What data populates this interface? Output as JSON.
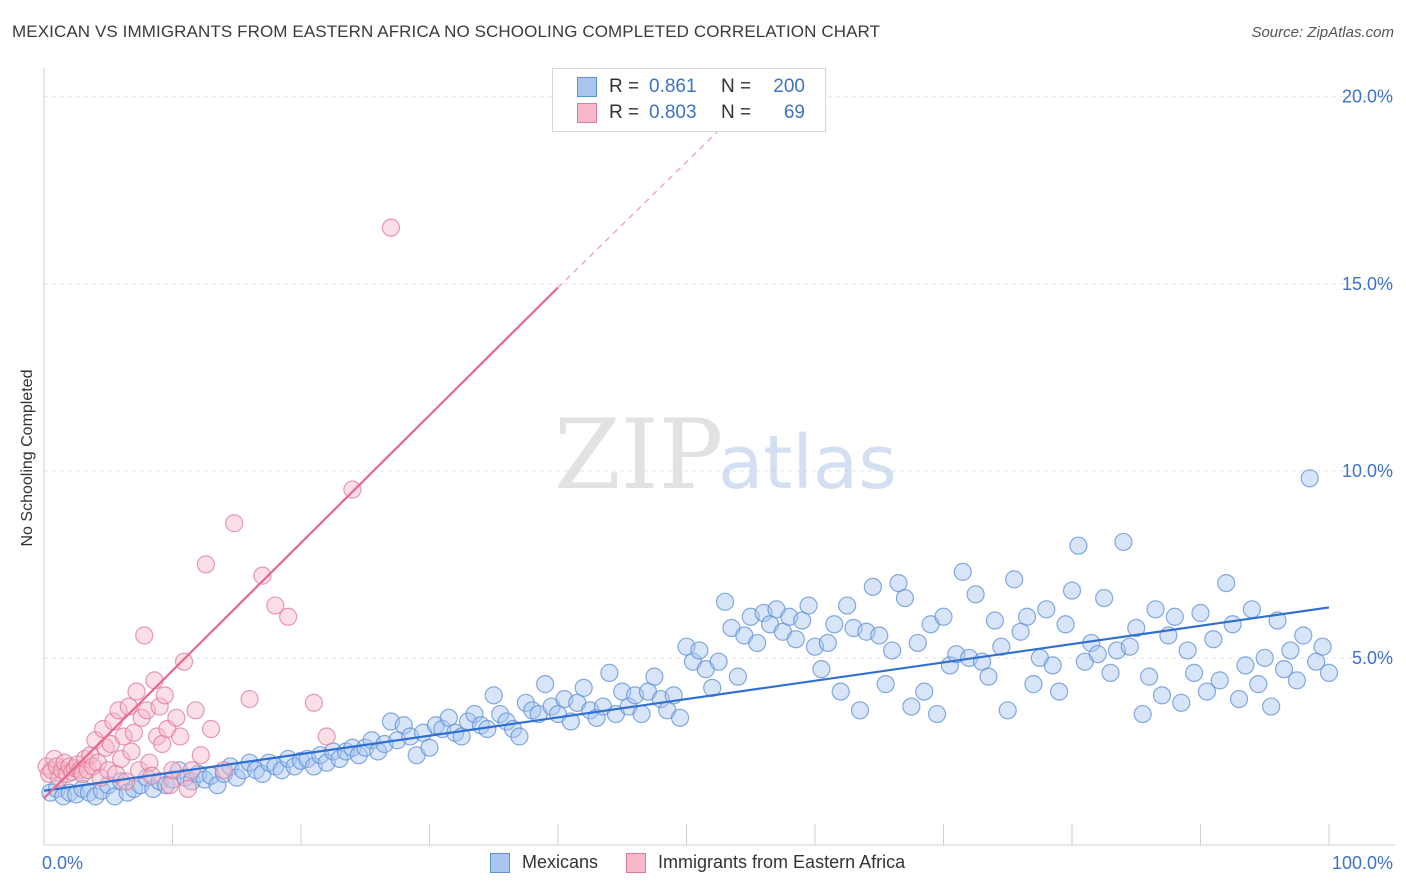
{
  "header": {
    "title": "MEXICAN VS IMMIGRANTS FROM EASTERN AFRICA NO SCHOOLING COMPLETED CORRELATION CHART",
    "source": "Source: ZipAtlas.com"
  },
  "watermark": {
    "zip": "ZIP",
    "atlas": "atlas"
  },
  "legend": {
    "rows": [
      {
        "r_label": "R =",
        "r_value": "0.861",
        "n_label": "N =",
        "n_value": "200",
        "color": "#a9c6f0",
        "border": "#5e8fd6"
      },
      {
        "r_label": "R =",
        "r_value": "0.803",
        "n_label": "N =",
        "n_value": "69",
        "color": "#f7b8ca",
        "border": "#e07a9a"
      }
    ]
  },
  "bottom_legend": {
    "items": [
      {
        "label": "Mexicans",
        "color": "#a9c6f0",
        "border": "#5e8fd6"
      },
      {
        "label": "Immigrants from Eastern Africa",
        "color": "#f7b8ca",
        "border": "#e07a9a"
      }
    ]
  },
  "chart_data": {
    "type": "scatter",
    "title": "MEXICAN VS IMMIGRANTS FROM EASTERN AFRICA NO SCHOOLING COMPLETED CORRELATION CHART",
    "xlabel": "",
    "ylabel": "No Schooling Completed",
    "xlim": [
      0,
      100
    ],
    "ylim": [
      0,
      20.5
    ],
    "x_tick_labels": [
      {
        "value": 0,
        "label": "0.0%"
      },
      {
        "value": 100,
        "label": "100.0%"
      }
    ],
    "y_ticks": [
      {
        "value": 5,
        "label": "5.0%"
      },
      {
        "value": 10,
        "label": "10.0%"
      },
      {
        "value": 15,
        "label": "15.0%"
      },
      {
        "value": 20,
        "label": "20.0%"
      }
    ],
    "x_minor_ticks": [
      0,
      10,
      20,
      30,
      40,
      50,
      60,
      70,
      80,
      90,
      100
    ],
    "series": [
      {
        "name": "Mexicans",
        "color": "#a9c6f0",
        "stroke": "#5e8fd6",
        "trend": {
          "x0": 0,
          "y0": 1.45,
          "x1": 100,
          "y1": 6.35,
          "color": "#2f6fd1"
        },
        "points": [
          [
            0.5,
            1.4
          ],
          [
            1.0,
            1.5
          ],
          [
            1.5,
            1.3
          ],
          [
            2.0,
            1.4
          ],
          [
            2.5,
            1.35
          ],
          [
            3.0,
            1.5
          ],
          [
            3.5,
            1.4
          ],
          [
            4.0,
            1.3
          ],
          [
            4.5,
            1.45
          ],
          [
            5.0,
            1.6
          ],
          [
            5.5,
            1.3
          ],
          [
            6.0,
            1.7
          ],
          [
            6.5,
            1.4
          ],
          [
            7.0,
            1.5
          ],
          [
            7.5,
            1.6
          ],
          [
            8.0,
            1.8
          ],
          [
            8.5,
            1.5
          ],
          [
            9.0,
            1.7
          ],
          [
            9.5,
            1.6
          ],
          [
            10.0,
            1.75
          ],
          [
            10.5,
            2.0
          ],
          [
            11.0,
            1.8
          ],
          [
            11.5,
            1.7
          ],
          [
            12.0,
            1.9
          ],
          [
            12.5,
            1.75
          ],
          [
            13.0,
            1.85
          ],
          [
            13.5,
            1.6
          ],
          [
            14.0,
            1.9
          ],
          [
            14.5,
            2.1
          ],
          [
            15.0,
            1.8
          ],
          [
            15.5,
            2.0
          ],
          [
            16.0,
            2.2
          ],
          [
            16.5,
            2.0
          ],
          [
            17.0,
            1.9
          ],
          [
            17.5,
            2.2
          ],
          [
            18.0,
            2.1
          ],
          [
            18.5,
            2.0
          ],
          [
            19.0,
            2.3
          ],
          [
            19.5,
            2.1
          ],
          [
            20.0,
            2.25
          ],
          [
            20.5,
            2.3
          ],
          [
            21.0,
            2.1
          ],
          [
            21.5,
            2.4
          ],
          [
            22.0,
            2.2
          ],
          [
            22.5,
            2.5
          ],
          [
            23.0,
            2.3
          ],
          [
            23.5,
            2.5
          ],
          [
            24.0,
            2.6
          ],
          [
            24.5,
            2.4
          ],
          [
            25.0,
            2.6
          ],
          [
            25.5,
            2.8
          ],
          [
            26.0,
            2.5
          ],
          [
            26.5,
            2.7
          ],
          [
            27.0,
            3.3
          ],
          [
            27.5,
            2.8
          ],
          [
            28.0,
            3.2
          ],
          [
            28.5,
            2.9
          ],
          [
            29.0,
            2.4
          ],
          [
            29.5,
            3.0
          ],
          [
            30.0,
            2.6
          ],
          [
            30.5,
            3.2
          ],
          [
            31.0,
            3.1
          ],
          [
            31.5,
            3.4
          ],
          [
            32.0,
            3.0
          ],
          [
            32.5,
            2.9
          ],
          [
            33.0,
            3.3
          ],
          [
            33.5,
            3.5
          ],
          [
            34.0,
            3.2
          ],
          [
            34.5,
            3.1
          ],
          [
            35.0,
            4.0
          ],
          [
            35.5,
            3.5
          ],
          [
            36.0,
            3.3
          ],
          [
            36.5,
            3.1
          ],
          [
            37.0,
            2.9
          ],
          [
            37.5,
            3.8
          ],
          [
            38.0,
            3.6
          ],
          [
            38.5,
            3.5
          ],
          [
            39.0,
            4.3
          ],
          [
            39.5,
            3.7
          ],
          [
            40.0,
            3.5
          ],
          [
            40.5,
            3.9
          ],
          [
            41.0,
            3.3
          ],
          [
            41.5,
            3.8
          ],
          [
            42.0,
            4.2
          ],
          [
            42.5,
            3.6
          ],
          [
            43.0,
            3.4
          ],
          [
            43.5,
            3.7
          ],
          [
            44.0,
            4.6
          ],
          [
            44.5,
            3.5
          ],
          [
            45.0,
            4.1
          ],
          [
            45.5,
            3.7
          ],
          [
            46.0,
            4.0
          ],
          [
            46.5,
            3.5
          ],
          [
            47.0,
            4.1
          ],
          [
            47.5,
            4.5
          ],
          [
            48.0,
            3.9
          ],
          [
            48.5,
            3.6
          ],
          [
            49.0,
            4.0
          ],
          [
            49.5,
            3.4
          ],
          [
            50.0,
            5.3
          ],
          [
            50.5,
            4.9
          ],
          [
            51.0,
            5.2
          ],
          [
            51.5,
            4.7
          ],
          [
            52.0,
            4.2
          ],
          [
            52.5,
            4.9
          ],
          [
            53.0,
            6.5
          ],
          [
            53.5,
            5.8
          ],
          [
            54.0,
            4.5
          ],
          [
            54.5,
            5.6
          ],
          [
            55.0,
            6.1
          ],
          [
            55.5,
            5.4
          ],
          [
            56.0,
            6.2
          ],
          [
            56.5,
            5.9
          ],
          [
            57.0,
            6.3
          ],
          [
            57.5,
            5.7
          ],
          [
            58.0,
            6.1
          ],
          [
            58.5,
            5.5
          ],
          [
            59.0,
            6.0
          ],
          [
            59.5,
            6.4
          ],
          [
            60.0,
            5.3
          ],
          [
            60.5,
            4.7
          ],
          [
            61.0,
            5.4
          ],
          [
            61.5,
            5.9
          ],
          [
            62.0,
            4.1
          ],
          [
            62.5,
            6.4
          ],
          [
            63.0,
            5.8
          ],
          [
            63.5,
            3.6
          ],
          [
            64.0,
            5.7
          ],
          [
            64.5,
            6.9
          ],
          [
            65.0,
            5.6
          ],
          [
            65.5,
            4.3
          ],
          [
            66.0,
            5.2
          ],
          [
            66.5,
            7.0
          ],
          [
            67.0,
            6.6
          ],
          [
            67.5,
            3.7
          ],
          [
            68.0,
            5.4
          ],
          [
            68.5,
            4.1
          ],
          [
            69.0,
            5.9
          ],
          [
            69.5,
            3.5
          ],
          [
            70.0,
            6.1
          ],
          [
            70.5,
            4.8
          ],
          [
            71.0,
            5.1
          ],
          [
            71.5,
            7.3
          ],
          [
            72.0,
            5.0
          ],
          [
            72.5,
            6.7
          ],
          [
            73.0,
            4.9
          ],
          [
            73.5,
            4.5
          ],
          [
            74.0,
            6.0
          ],
          [
            74.5,
            5.3
          ],
          [
            75.0,
            3.6
          ],
          [
            75.5,
            7.1
          ],
          [
            76.0,
            5.7
          ],
          [
            76.5,
            6.1
          ],
          [
            77.0,
            4.3
          ],
          [
            77.5,
            5.0
          ],
          [
            78.0,
            6.3
          ],
          [
            78.5,
            4.8
          ],
          [
            79.0,
            4.1
          ],
          [
            79.5,
            5.9
          ],
          [
            80.0,
            6.8
          ],
          [
            80.5,
            8.0
          ],
          [
            81.0,
            4.9
          ],
          [
            81.5,
            5.4
          ],
          [
            82.0,
            5.1
          ],
          [
            82.5,
            6.6
          ],
          [
            83.0,
            4.6
          ],
          [
            83.5,
            5.2
          ],
          [
            84.0,
            8.1
          ],
          [
            84.5,
            5.3
          ],
          [
            85.0,
            5.8
          ],
          [
            85.5,
            3.5
          ],
          [
            86.0,
            4.5
          ],
          [
            86.5,
            6.3
          ],
          [
            87.0,
            4.0
          ],
          [
            87.5,
            5.6
          ],
          [
            88.0,
            6.1
          ],
          [
            88.5,
            3.8
          ],
          [
            89.0,
            5.2
          ],
          [
            89.5,
            4.6
          ],
          [
            90.0,
            6.2
          ],
          [
            90.5,
            4.1
          ],
          [
            91.0,
            5.5
          ],
          [
            91.5,
            4.4
          ],
          [
            92.0,
            7.0
          ],
          [
            92.5,
            5.9
          ],
          [
            93.0,
            3.9
          ],
          [
            93.5,
            4.8
          ],
          [
            94.0,
            6.3
          ],
          [
            94.5,
            4.3
          ],
          [
            95.0,
            5.0
          ],
          [
            95.5,
            3.7
          ],
          [
            96.0,
            6.0
          ],
          [
            96.5,
            4.7
          ],
          [
            97.0,
            5.2
          ],
          [
            97.5,
            4.4
          ],
          [
            98.0,
            5.6
          ],
          [
            98.5,
            9.8
          ],
          [
            99.0,
            4.9
          ],
          [
            99.5,
            5.3
          ],
          [
            100.0,
            4.6
          ]
        ]
      },
      {
        "name": "Immigrants from Eastern Africa",
        "color": "#f7b8ca",
        "stroke": "#e07a9a",
        "trend": {
          "x0": 0,
          "y0": 1.25,
          "x1": 40,
          "y1": 14.9,
          "color": "#e8678f"
        },
        "trend_dashed": {
          "x0": 40,
          "y0": 14.9,
          "x1": 54,
          "y1": 19.6,
          "color": "#e8a2b9"
        },
        "points": [
          [
            0.2,
            2.1
          ],
          [
            0.4,
            1.9
          ],
          [
            0.6,
            2.0
          ],
          [
            0.8,
            2.3
          ],
          [
            1.0,
            2.1
          ],
          [
            1.2,
            1.8
          ],
          [
            1.4,
            2.0
          ],
          [
            1.6,
            2.2
          ],
          [
            1.8,
            1.9
          ],
          [
            2.0,
            2.1
          ],
          [
            2.2,
            1.95
          ],
          [
            2.4,
            2.05
          ],
          [
            2.6,
            2.15
          ],
          [
            2.8,
            2.0
          ],
          [
            3.0,
            1.9
          ],
          [
            3.2,
            2.3
          ],
          [
            3.4,
            2.0
          ],
          [
            3.6,
            2.4
          ],
          [
            3.8,
            2.1
          ],
          [
            4.0,
            2.8
          ],
          [
            4.2,
            2.2
          ],
          [
            4.4,
            1.8
          ],
          [
            4.6,
            3.1
          ],
          [
            4.8,
            2.6
          ],
          [
            5.0,
            2.0
          ],
          [
            5.2,
            2.7
          ],
          [
            5.4,
            3.3
          ],
          [
            5.6,
            1.9
          ],
          [
            5.8,
            3.6
          ],
          [
            6.0,
            2.3
          ],
          [
            6.2,
            2.9
          ],
          [
            6.4,
            1.7
          ],
          [
            6.6,
            3.7
          ],
          [
            6.8,
            2.5
          ],
          [
            7.0,
            3.0
          ],
          [
            7.2,
            4.1
          ],
          [
            7.4,
            2.0
          ],
          [
            7.6,
            3.4
          ],
          [
            7.8,
            5.6
          ],
          [
            8.0,
            3.6
          ],
          [
            8.2,
            2.2
          ],
          [
            8.4,
            1.85
          ],
          [
            8.6,
            4.4
          ],
          [
            8.8,
            2.9
          ],
          [
            9.0,
            3.7
          ],
          [
            9.2,
            2.7
          ],
          [
            9.4,
            4.0
          ],
          [
            9.6,
            3.1
          ],
          [
            9.8,
            1.6
          ],
          [
            10.0,
            2.0
          ],
          [
            10.3,
            3.4
          ],
          [
            10.6,
            2.9
          ],
          [
            10.9,
            4.9
          ],
          [
            11.2,
            1.5
          ],
          [
            11.5,
            2.0
          ],
          [
            11.8,
            3.6
          ],
          [
            12.2,
            2.4
          ],
          [
            12.6,
            7.5
          ],
          [
            13.0,
            3.1
          ],
          [
            14.0,
            2.0
          ],
          [
            14.8,
            8.6
          ],
          [
            16.0,
            3.9
          ],
          [
            17.0,
            7.2
          ],
          [
            18.0,
            6.4
          ],
          [
            19.0,
            6.1
          ],
          [
            21.0,
            3.8
          ],
          [
            22.0,
            2.9
          ],
          [
            24.0,
            9.5
          ],
          [
            27.0,
            16.5
          ]
        ]
      }
    ]
  }
}
